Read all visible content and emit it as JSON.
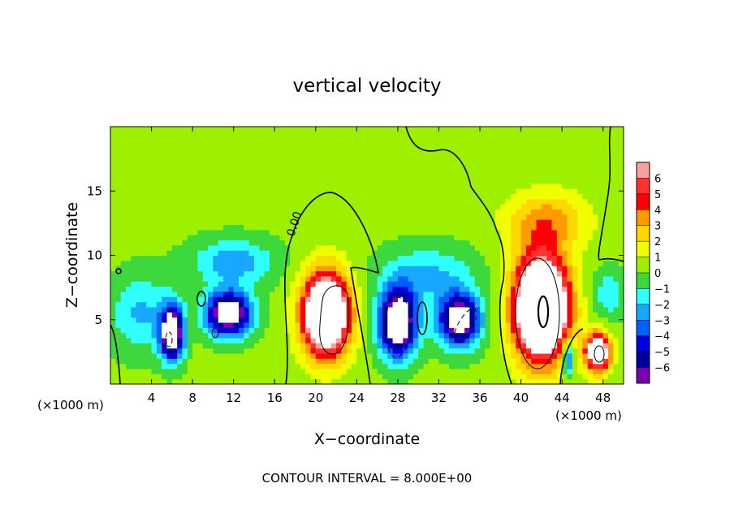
{
  "chart_data": {
    "type": "heatmap",
    "title": "vertical velocity",
    "xlabel": "X−coordinate",
    "ylabel": "Z−coordinate",
    "x_unit_left": "(×1000 m)",
    "x_unit_right": "(×1000 m)",
    "footer": "CONTOUR INTERVAL = 8.000E+00",
    "contour_label": "0.00",
    "xlim": [
      0,
      50
    ],
    "ylim": [
      0,
      20
    ],
    "x_ticks": [
      4,
      8,
      12,
      16,
      20,
      24,
      28,
      32,
      36,
      40,
      44,
      48
    ],
    "x_tick_labels": [
      "4",
      "8",
      "12",
      "16",
      "20",
      "24",
      "28",
      "32",
      "36",
      "40",
      "44",
      "48"
    ],
    "y_ticks": [
      5,
      10,
      15
    ],
    "y_tick_labels": [
      "5",
      "10",
      "15"
    ],
    "colorbar": {
      "levels": [
        6,
        5,
        4,
        3,
        2,
        1,
        0,
        -1,
        -2,
        -3,
        -4,
        -5,
        -6
      ],
      "labels": [
        "6",
        "5",
        "4",
        "3",
        "2",
        "1",
        "0",
        "−1",
        "−2",
        "−3",
        "−4",
        "−5",
        "−6"
      ],
      "colors": [
        "#f6a0a0",
        "#ff3030",
        "#ff0000",
        "#ff9a00",
        "#ffd800",
        "#f0ff00",
        "#9cf000",
        "#3cd83c",
        "#30ffff",
        "#18a8ff",
        "#0060ff",
        "#0000e0",
        "#0000a0",
        "#7a00b0"
      ]
    },
    "field": {
      "background": 0.3,
      "features": [
        {
          "label": "updraft",
          "x": 21.0,
          "z": 5.5,
          "peak": 12,
          "sx": 2.3,
          "sz": 3.2
        },
        {
          "label": "updraft",
          "x": 42.0,
          "z": 6.0,
          "peak": 14,
          "sx": 2.6,
          "sz": 4.0
        },
        {
          "label": "updraft cap",
          "x": 42.5,
          "z": 12.8,
          "peak": 3,
          "sx": 4.0,
          "sz": 2.2
        },
        {
          "label": "updraft",
          "x": 47.5,
          "z": 2.5,
          "peak": 10,
          "sx": 1.2,
          "sz": 1.5
        },
        {
          "label": "downdraft",
          "x": 6.0,
          "z": 4.0,
          "peak": -10,
          "sx": 1.1,
          "sz": 2.0
        },
        {
          "label": "downdraft",
          "x": 11.5,
          "z": 5.5,
          "peak": -9,
          "sx": 2.2,
          "sz": 1.7
        },
        {
          "label": "downdraft",
          "x": 28.0,
          "z": 4.8,
          "peak": -10,
          "sx": 1.8,
          "sz": 2.6
        },
        {
          "label": "downdraft",
          "x": 34.0,
          "z": 5.0,
          "peak": -9,
          "sx": 2.0,
          "sz": 2.0
        },
        {
          "label": "downdraft",
          "x": 44.6,
          "z": 2.0,
          "peak": -5,
          "sx": 0.6,
          "sz": 1.3
        },
        {
          "label": "weak downdraft",
          "x": 12.0,
          "z": 9.5,
          "peak": -3,
          "sx": 4.0,
          "sz": 1.8
        },
        {
          "label": "weak downdraft",
          "x": 3.0,
          "z": 5.5,
          "peak": -2.5,
          "sx": 3.0,
          "sz": 3.0
        },
        {
          "label": "weak downdraft",
          "x": 31.0,
          "z": 8.5,
          "peak": -2.5,
          "sx": 4.5,
          "sz": 2.2
        },
        {
          "label": "weak downdraft",
          "x": 48.5,
          "z": 7.0,
          "peak": -2,
          "sx": 1.5,
          "sz": 2.0
        }
      ]
    }
  }
}
